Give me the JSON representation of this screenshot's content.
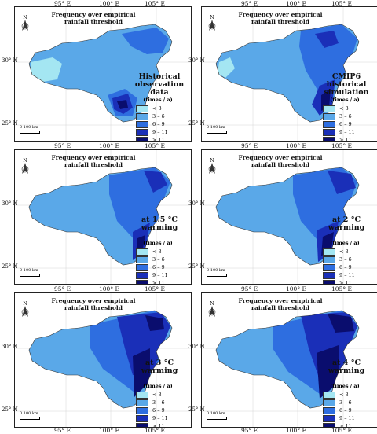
{
  "axis": {
    "lon_labels": [
      "95° E",
      "100° E",
      "105° E"
    ],
    "lat_labels": [
      "30° N",
      "25° N"
    ]
  },
  "common": {
    "panel_title": "Frequency over empirical rainfall threshold",
    "north_label": "N",
    "scale_label": "0   100 km"
  },
  "legend": {
    "title": "(times / a)",
    "items": [
      {
        "label": "< 3",
        "color": "#a4e6f2"
      },
      {
        "label": "3 – 6",
        "color": "#5aa8e8"
      },
      {
        "label": "6 – 9",
        "color": "#2e6ee0"
      },
      {
        "label": "9 – 11",
        "color": "#1a2fb8"
      },
      {
        "label": "> 11",
        "color": "#0a0d6e"
      }
    ]
  },
  "panels": [
    {
      "label": "Historical observation data"
    },
    {
      "label": "CMIP6 historical simulation"
    },
    {
      "label": "at 1.5 °C warming"
    },
    {
      "label": "at 2 °C warming"
    },
    {
      "label": "at 3 °C warming"
    },
    {
      "label": "at 4 °C warming"
    }
  ],
  "colors": {
    "border": "#222222",
    "background": "#ffffff"
  }
}
